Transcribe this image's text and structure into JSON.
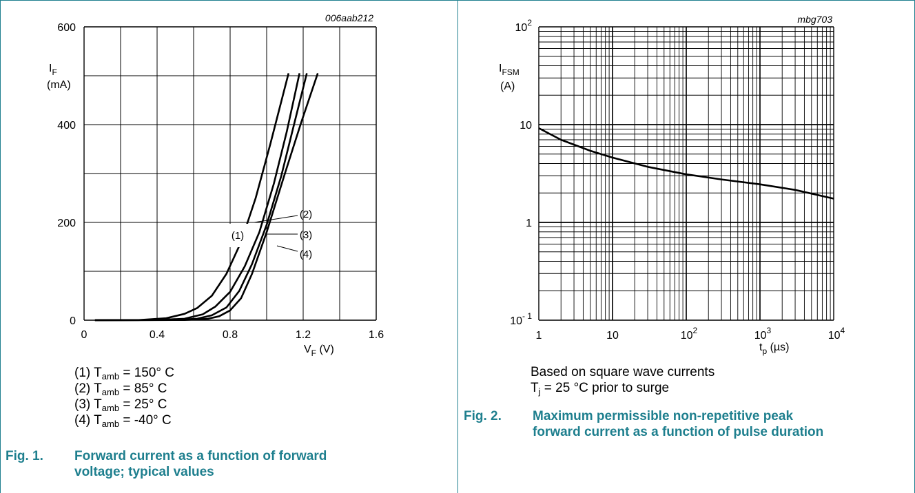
{
  "colors": {
    "accent": "#1e7f8e",
    "grid": "#000000",
    "curve": "#000000"
  },
  "chart_data": [
    {
      "type": "line",
      "code": "006aab212",
      "xlabel_main": "V",
      "xlabel_sub": "F",
      "xlabel_unit": " (V)",
      "ylabel_main": "I",
      "ylabel_sub": "F",
      "ylabel_unit": "(mA)",
      "xlim": [
        0,
        1.6
      ],
      "ylim": [
        0,
        600
      ],
      "x_ticks": [
        0,
        0.4,
        0.8,
        1.2,
        1.6
      ],
      "x_tick_labels": [
        "0",
        "0.4",
        "0.8",
        "1.2",
        "1.6"
      ],
      "y_ticks": [
        0,
        200,
        400,
        600
      ],
      "y_tick_labels": [
        "0",
        "200",
        "400",
        "600"
      ],
      "grid": true,
      "series": [
        {
          "name": "(1)",
          "x": [
            0.06,
            0.3,
            0.45,
            0.55,
            0.62,
            0.7,
            0.78,
            0.86,
            0.94,
            1.02,
            1.12
          ],
          "y": [
            0,
            0.3,
            4,
            13,
            25,
            50,
            95,
            160,
            250,
            360,
            505
          ]
        },
        {
          "name": "(2)",
          "x": [
            0.06,
            0.4,
            0.55,
            0.65,
            0.72,
            0.8,
            0.88,
            0.96,
            1.04,
            1.11,
            1.18
          ],
          "y": [
            0,
            0.4,
            3,
            12,
            28,
            58,
            110,
            180,
            280,
            385,
            505
          ]
        },
        {
          "name": "(3)",
          "x": [
            0.06,
            0.48,
            0.62,
            0.7,
            0.78,
            0.85,
            0.92,
            1.0,
            1.08,
            1.15,
            1.22
          ],
          "y": [
            0,
            0.4,
            3,
            10,
            26,
            60,
            115,
            195,
            295,
            400,
            505
          ]
        },
        {
          "name": "(4)",
          "x": [
            0.06,
            0.55,
            0.68,
            0.74,
            0.8,
            0.86,
            0.92,
            1.0,
            1.1,
            1.19,
            1.28
          ],
          "y": [
            0,
            0.4,
            3,
            8,
            20,
            45,
            95,
            180,
            300,
            405,
            505
          ]
        }
      ],
      "annotations": [
        "(1)",
        "(2)",
        "(3)",
        "(4)"
      ]
    },
    {
      "type": "line",
      "code": "mbg703",
      "xscale": "log",
      "yscale": "log",
      "xlabel_main": "t",
      "xlabel_sub": "p",
      "xlabel_unit": " (µs)",
      "ylabel_main": "I",
      "ylabel_sub": "FSM",
      "ylabel_unit": "(A)",
      "xlim": [
        1,
        10000
      ],
      "ylim": [
        0.1,
        100
      ],
      "x_tick_labels": [
        {
          "base": "1",
          "exp": ""
        },
        {
          "base": "10",
          "exp": ""
        },
        {
          "base": "10",
          "exp": "2"
        },
        {
          "base": "10",
          "exp": "3"
        },
        {
          "base": "10",
          "exp": "4"
        }
      ],
      "y_tick_labels": [
        {
          "base": "10",
          "exp": "- 1"
        },
        {
          "base": "1",
          "exp": ""
        },
        {
          "base": "10",
          "exp": ""
        },
        {
          "base": "10",
          "exp": "2"
        }
      ],
      "grid": true,
      "series": [
        {
          "x": [
            1,
            2,
            5,
            10,
            30,
            100,
            300,
            1000,
            3000,
            10000
          ],
          "y": [
            9.2,
            7.0,
            5.4,
            4.6,
            3.7,
            3.1,
            2.75,
            2.45,
            2.15,
            1.75
          ]
        }
      ]
    }
  ],
  "fig1": {
    "notes": [
      {
        "pre": "(1) T",
        "sub": "amb",
        "post": " = 150° C"
      },
      {
        "pre": "(2) T",
        "sub": "amb",
        "post": " = 85° C"
      },
      {
        "pre": "(3) T",
        "sub": "amb",
        "post": " = 25° C"
      },
      {
        "pre": "(4) T",
        "sub": "amb",
        "post": " = -40° C"
      }
    ],
    "caption_number": "Fig. 1.",
    "caption_line1": "Forward current as a function of forward",
    "caption_line2": "voltage; typical values"
  },
  "fig2": {
    "note_line1": "Based on square wave currents",
    "note2_pre": "T",
    "note2_sub": "j",
    "note2_post": " = 25 °C prior to surge",
    "caption_number": "Fig. 2.",
    "caption_line1": "Maximum permissible non-repetitive peak",
    "caption_line2": "forward current as a function of pulse duration"
  }
}
